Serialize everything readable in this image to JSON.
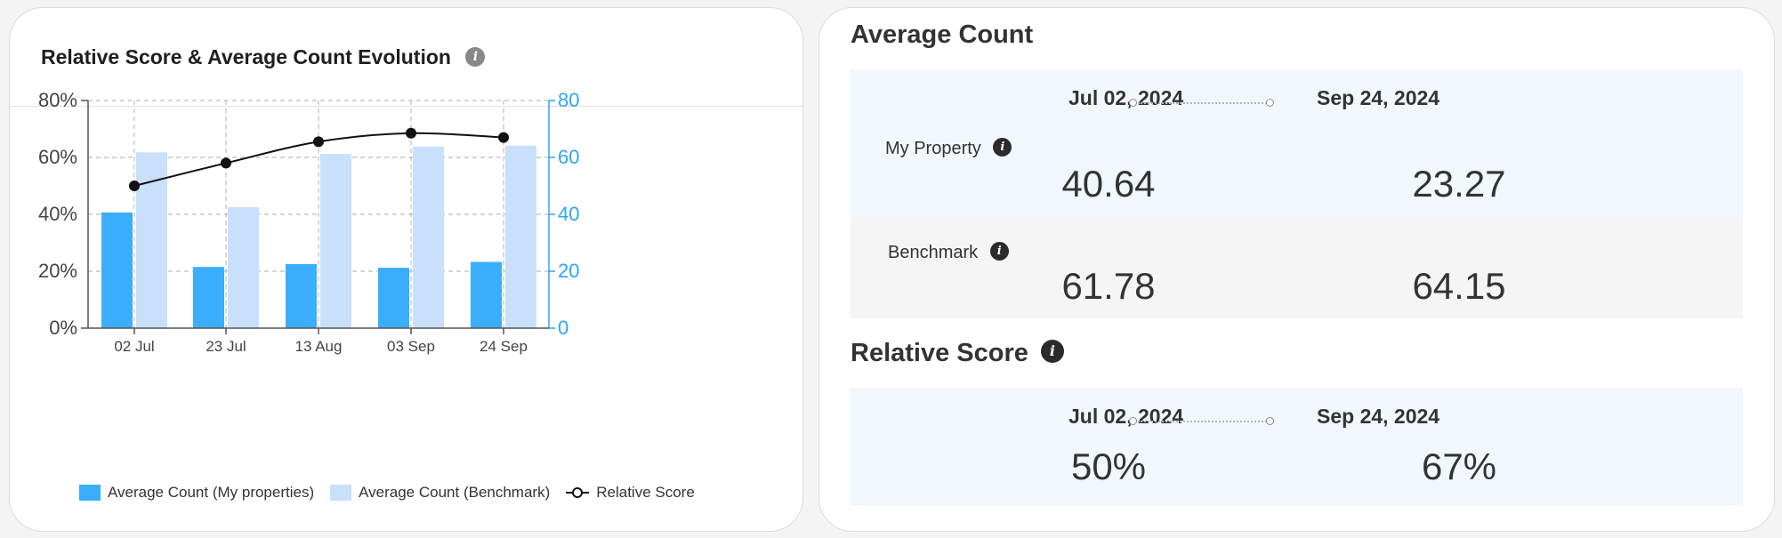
{
  "left_card": {
    "title": "Relative Score & Average Count Evolution",
    "info_icon": "i"
  },
  "colors": {
    "my_properties": "#3aaefa",
    "benchmark": "#c9e0fc",
    "relative_score": "#111111",
    "right_axis": "#2ba5f7"
  },
  "chart_data": {
    "type": "bar",
    "categories": [
      "02 Jul",
      "23 Jul",
      "13 Aug",
      "03 Sep",
      "24 Sep"
    ],
    "series": [
      {
        "name": "Average Count (My properties)",
        "type": "bar",
        "axis": "right",
        "values": [
          40.64,
          21.5,
          22.5,
          21.2,
          23.27
        ]
      },
      {
        "name": "Average Count (Benchmark)",
        "type": "bar",
        "axis": "right",
        "values": [
          61.78,
          42.5,
          61.2,
          63.8,
          64.15
        ]
      },
      {
        "name": "Relative Score",
        "type": "line",
        "axis": "left",
        "values": [
          50,
          58,
          65.5,
          68.5,
          67
        ]
      }
    ],
    "y_left": {
      "ticks": [
        "0%",
        "20%",
        "40%",
        "60%",
        "80%"
      ],
      "ylim": [
        0,
        80
      ]
    },
    "y_right": {
      "ticks": [
        "0",
        "20",
        "40",
        "60",
        "80"
      ],
      "ylim": [
        0,
        80
      ]
    },
    "grid": true,
    "legend_position": "bottom"
  },
  "legend": [
    {
      "label": "Average Count (My properties)",
      "kind": "bar-mine"
    },
    {
      "label": "Average Count (Benchmark)",
      "kind": "bar-bench"
    },
    {
      "label": "Relative Score",
      "kind": "line"
    }
  ],
  "average_count": {
    "title": "Average Count",
    "start_date": "Jul 02, 2024",
    "end_date": "Sep 24, 2024",
    "my_property": {
      "label": "My Property",
      "start": "40.64",
      "end": "23.27"
    },
    "benchmark": {
      "label": "Benchmark",
      "start": "61.78",
      "end": "64.15"
    }
  },
  "relative_score": {
    "title": "Relative Score",
    "start_date": "Jul 02, 2024",
    "end_date": "Sep 24, 2024",
    "start": "50%",
    "end": "67%"
  }
}
